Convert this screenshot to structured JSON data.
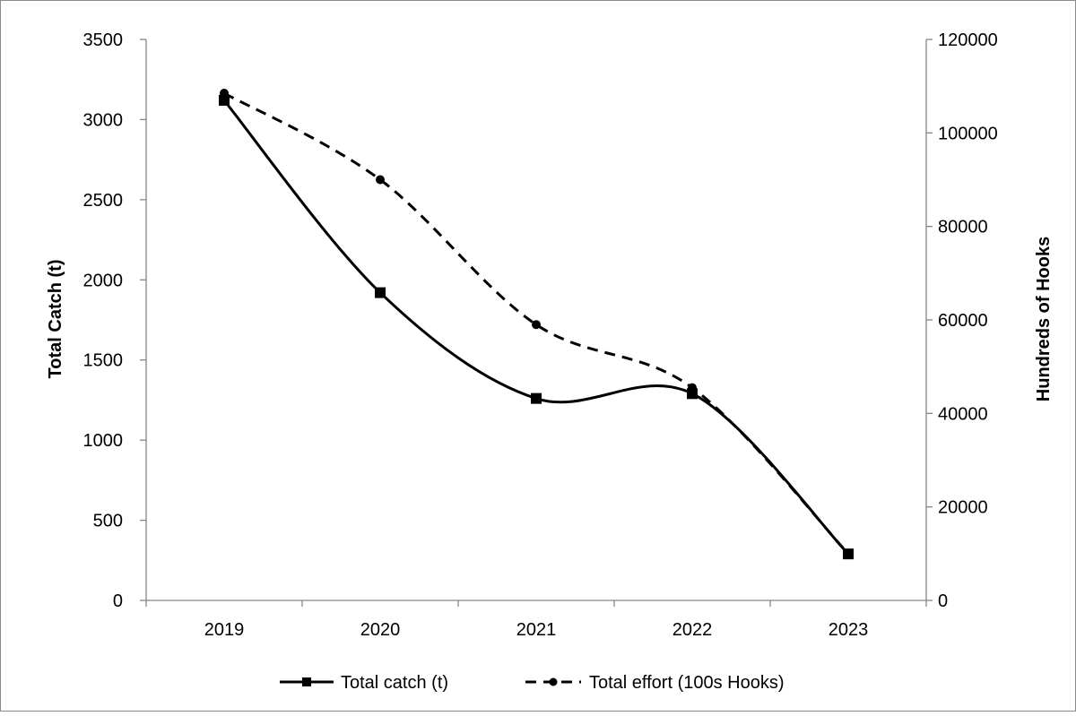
{
  "chart_data": {
    "type": "line",
    "categories": [
      "2019",
      "2020",
      "2021",
      "2022",
      "2023"
    ],
    "series": [
      {
        "name": "Total catch (t)",
        "axis": "left",
        "values": [
          3120,
          1920,
          1260,
          1290,
          290
        ],
        "line_style": "solid",
        "marker": "square",
        "color": "#000000"
      },
      {
        "name": "Total effort (100s Hooks)",
        "axis": "right",
        "values": [
          108500,
          90000,
          59000,
          45500,
          10000
        ],
        "line_style": "dashed",
        "marker": "circle",
        "color": "#000000"
      }
    ],
    "ylabel": "Total Catch (t)",
    "y2label": "Hundreds of Hooks",
    "xlabel": "",
    "ylim": [
      0,
      3500
    ],
    "y2lim": [
      0,
      120000
    ],
    "yticks": [
      "0",
      "500",
      "1000",
      "1500",
      "2000",
      "2500",
      "3000",
      "3500"
    ],
    "y2ticks": [
      "0",
      "20000",
      "40000",
      "60000",
      "80000",
      "100000",
      "120000"
    ],
    "grid": false,
    "legend_position": "bottom",
    "smoothed": true
  }
}
